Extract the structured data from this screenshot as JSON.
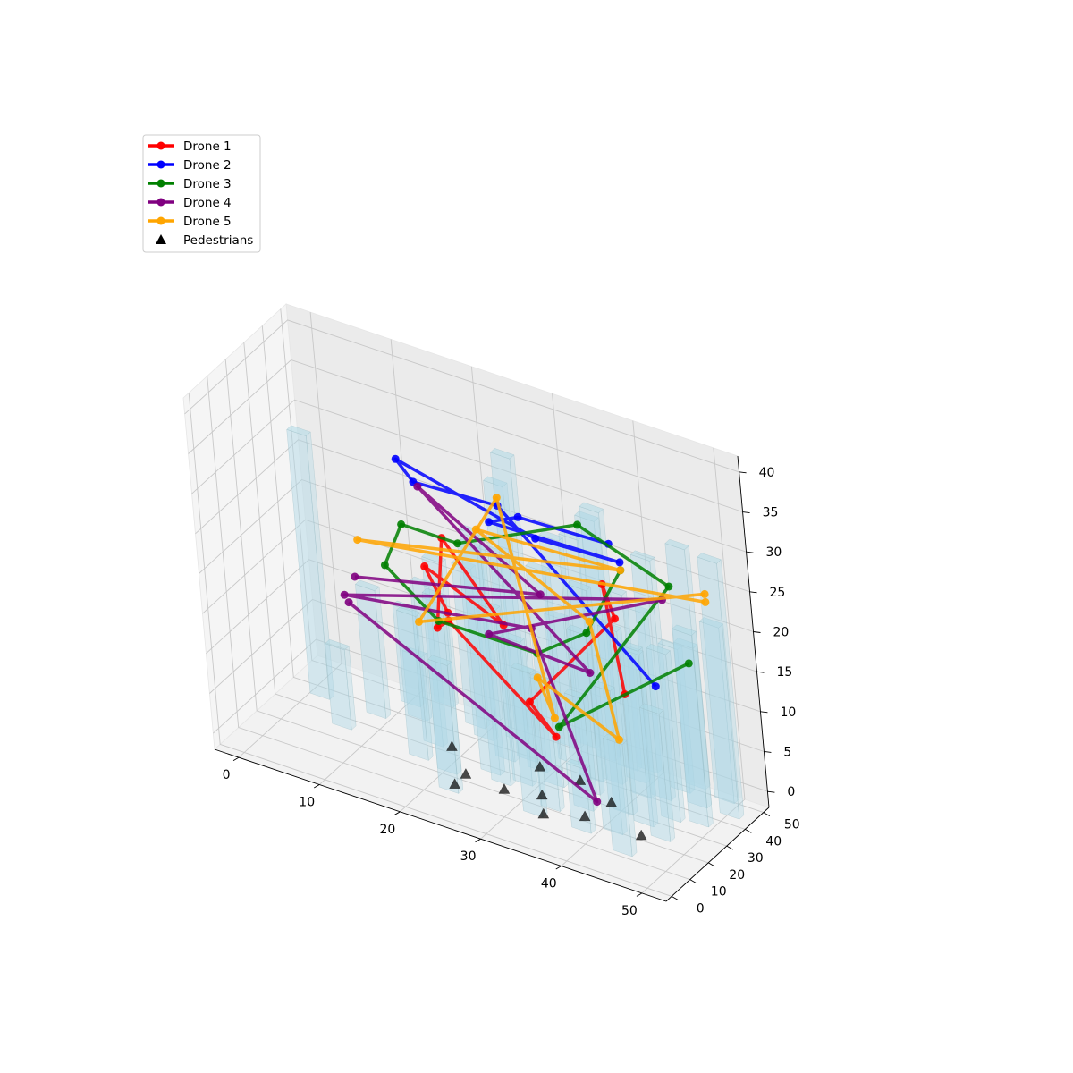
{
  "chart_data": {
    "type": "scatter",
    "projection": "3d",
    "title": "",
    "xlabel": "",
    "ylabel": "",
    "zlabel": "",
    "xlim": [
      -3,
      53
    ],
    "ylim": [
      -3,
      53
    ],
    "zlim": [
      -2,
      42
    ],
    "xticks": [
      0,
      10,
      20,
      30,
      40,
      50
    ],
    "yticks": [
      0,
      10,
      20,
      30,
      40,
      50
    ],
    "zticks": [
      0,
      5,
      10,
      15,
      20,
      25,
      30,
      35,
      40
    ],
    "grid": true,
    "legend_position": "upper-left",
    "colors": {
      "Drone 1": "#ff0000",
      "Drone 2": "#0000ff",
      "Drone 3": "#008000",
      "Drone 4": "#800080",
      "Drone 5": "#ffa500",
      "Pedestrians": "#000000",
      "buildings": "#add8e6"
    },
    "buildings": [
      [
        3,
        30,
        33
      ],
      [
        18,
        18,
        18
      ],
      [
        10,
        30,
        16
      ],
      [
        14,
        35,
        8
      ],
      [
        22,
        16,
        22
      ],
      [
        26,
        22,
        30
      ],
      [
        28,
        19,
        22
      ],
      [
        30,
        30,
        12
      ],
      [
        33,
        26,
        27
      ],
      [
        37,
        28,
        20
      ],
      [
        40,
        40,
        16
      ],
      [
        42,
        34,
        18
      ],
      [
        45,
        22,
        22
      ],
      [
        47,
        28,
        21
      ],
      [
        35,
        15,
        16
      ],
      [
        38,
        20,
        14
      ],
      [
        40,
        10,
        8
      ],
      [
        43,
        14,
        18
      ],
      [
        46,
        6,
        14
      ],
      [
        48,
        18,
        16
      ],
      [
        25,
        40,
        32
      ],
      [
        30,
        45,
        16
      ],
      [
        35,
        45,
        30
      ],
      [
        40,
        46,
        20
      ],
      [
        45,
        42,
        18
      ],
      [
        50,
        44,
        22
      ],
      [
        20,
        40,
        20
      ],
      [
        15,
        45,
        18
      ],
      [
        32,
        38,
        28
      ],
      [
        38,
        36,
        34
      ],
      [
        28,
        33,
        38
      ],
      [
        42,
        24,
        23
      ],
      [
        50,
        30,
        24
      ],
      [
        34,
        10,
        18
      ],
      [
        24,
        8,
        16
      ],
      [
        36,
        34,
        24
      ],
      [
        44,
        36,
        30
      ],
      [
        26,
        30,
        26
      ],
      [
        48,
        38,
        20
      ],
      [
        46,
        46,
        30
      ],
      [
        52,
        38,
        32
      ],
      [
        30,
        22,
        18
      ],
      [
        18,
        26,
        20
      ],
      [
        22,
        36,
        24
      ],
      [
        12,
        40,
        12
      ],
      [
        8,
        20,
        10
      ],
      [
        38,
        44,
        22
      ],
      [
        32,
        48,
        26
      ]
    ],
    "series": [
      {
        "name": "Drone 1",
        "points": [
          [
            45,
            17,
            17
          ],
          [
            38,
            38,
            24
          ],
          [
            40,
            35,
            21
          ],
          [
            32,
            20,
            11
          ],
          [
            37,
            12,
            10
          ],
          [
            20,
            30,
            15
          ],
          [
            18,
            32,
            13
          ],
          [
            18,
            38,
            23
          ],
          [
            28,
            26,
            18
          ],
          [
            15,
            40,
            18
          ],
          [
            20,
            30,
            16
          ]
        ]
      },
      {
        "name": "Drone 2",
        "points": [
          [
            47,
            25,
            17
          ],
          [
            25,
            40,
            29
          ],
          [
            15,
            38,
            29
          ],
          [
            12,
            42,
            30
          ],
          [
            30,
            38,
            27
          ],
          [
            40,
            40,
            27
          ],
          [
            25,
            35,
            28
          ],
          [
            28,
            38,
            29
          ],
          [
            38,
            43,
            28
          ]
        ]
      },
      {
        "name": "Drone 3",
        "points": [
          [
            52,
            23,
            22
          ],
          [
            38,
            10,
            12
          ],
          [
            46,
            40,
            26
          ],
          [
            35,
            40,
            30
          ],
          [
            20,
            38,
            23
          ],
          [
            13,
            38,
            23
          ],
          [
            13,
            28,
            20
          ],
          [
            20,
            25,
            16
          ],
          [
            33,
            22,
            17
          ],
          [
            38,
            28,
            20
          ],
          [
            40,
            40,
            26
          ]
        ]
      },
      {
        "name": "Drone 4",
        "points": [
          [
            10,
            20,
            16
          ],
          [
            42,
            10,
            4
          ],
          [
            30,
            32,
            17
          ],
          [
            8,
            26,
            15
          ],
          [
            45,
            40,
            24
          ],
          [
            25,
            30,
            15
          ],
          [
            38,
            28,
            15
          ],
          [
            15,
            40,
            28
          ],
          [
            30,
            38,
            20
          ],
          [
            8,
            32,
            16
          ]
        ]
      },
      {
        "name": "Drone 5",
        "points": [
          [
            50,
            42,
            25
          ],
          [
            8,
            35,
            20
          ],
          [
            40,
            40,
            26
          ],
          [
            22,
            40,
            25
          ],
          [
            38,
            30,
            21
          ],
          [
            43,
            20,
            10
          ],
          [
            32,
            25,
            13
          ],
          [
            35,
            20,
            10
          ],
          [
            25,
            40,
            30
          ],
          [
            20,
            15,
            18
          ],
          [
            50,
            42,
            26
          ]
        ]
      }
    ],
    "pedestrians": [
      [
        24,
        16,
        0
      ],
      [
        24,
        10,
        0
      ],
      [
        20,
        26,
        0
      ],
      [
        30,
        30,
        0
      ],
      [
        33,
        18,
        0
      ],
      [
        29,
        15,
        0
      ],
      [
        35,
        10,
        0
      ],
      [
        39,
        15,
        0
      ],
      [
        40,
        25,
        0
      ],
      [
        46,
        15,
        0
      ],
      [
        35,
        30,
        0
      ]
    ],
    "legend": [
      {
        "label": "Drone 1",
        "marker": "line"
      },
      {
        "label": "Drone 2",
        "marker": "line"
      },
      {
        "label": "Drone 3",
        "marker": "line"
      },
      {
        "label": "Drone 4",
        "marker": "line"
      },
      {
        "label": "Drone 5",
        "marker": "line"
      },
      {
        "label": "Pedestrians",
        "marker": "triangle"
      }
    ]
  }
}
